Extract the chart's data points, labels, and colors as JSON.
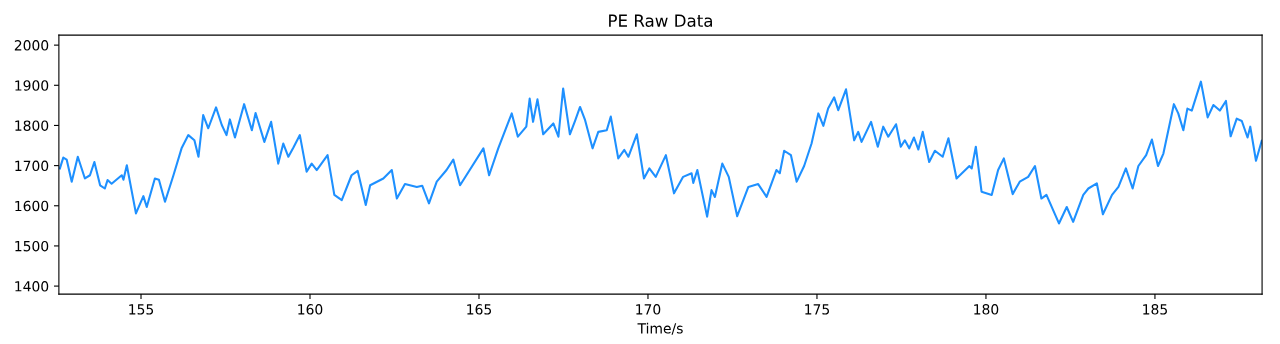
{
  "chart_data": {
    "type": "line",
    "title": "PE Raw Data",
    "xlabel": "Time/s",
    "xlim": [
      152.57,
      188.17
    ],
    "ylim": [
      1380,
      2025
    ],
    "xticks": [
      155,
      160,
      165,
      170,
      175,
      180,
      185
    ],
    "yticks": [
      1400,
      1500,
      1600,
      1700,
      1800,
      1900,
      2000
    ],
    "grid": false,
    "legend": false,
    "marker": "none",
    "line_style": "solid",
    "series": [
      {
        "color": "#1e90ff",
        "x": [
          152.6,
          152.7,
          152.8,
          152.95,
          153.13,
          153.34,
          153.49,
          153.62,
          153.79,
          153.93,
          154.01,
          154.13,
          154.43,
          154.48,
          154.58,
          154.85,
          155.07,
          155.17,
          155.41,
          155.53,
          155.71,
          155.96,
          156.2,
          156.4,
          156.58,
          156.7,
          156.84,
          156.99,
          157.22,
          157.39,
          157.53,
          157.63,
          157.78,
          158.05,
          158.28,
          158.39,
          158.65,
          158.85,
          159.06,
          159.21,
          159.36,
          159.51,
          159.7,
          159.9,
          160.05,
          160.2,
          160.52,
          160.72,
          160.94,
          161.23,
          161.41,
          161.65,
          161.78,
          162.17,
          162.42,
          162.57,
          162.81,
          163.16,
          163.32,
          163.52,
          163.75,
          164.04,
          164.24,
          164.44,
          164.59,
          165.13,
          165.3,
          165.57,
          165.97,
          166.15,
          166.4,
          166.5,
          166.6,
          166.73,
          166.9,
          167.2,
          167.35,
          167.49,
          167.69,
          167.84,
          167.99,
          168.14,
          168.36,
          168.53,
          168.78,
          168.9,
          169.12,
          169.3,
          169.42,
          169.67,
          169.88,
          170.04,
          170.23,
          170.53,
          170.77,
          171.04,
          171.29,
          171.34,
          171.46,
          171.75,
          171.88,
          171.98,
          172.2,
          172.39,
          172.64,
          172.97,
          173.26,
          173.51,
          173.8,
          173.9,
          174.03,
          174.23,
          174.4,
          174.62,
          174.84,
          175.04,
          175.19,
          175.33,
          175.51,
          175.63,
          175.86,
          176.1,
          176.22,
          176.32,
          176.6,
          176.8,
          176.96,
          177.11,
          177.34,
          177.48,
          177.6,
          177.73,
          177.87,
          178.0,
          178.13,
          178.32,
          178.49,
          178.72,
          178.89,
          179.13,
          179.51,
          179.58,
          179.7,
          179.87,
          180.17,
          180.36,
          180.53,
          180.79,
          181.0,
          181.25,
          181.45,
          181.64,
          181.79,
          182.16,
          182.39,
          182.58,
          182.88,
          183.03,
          183.28,
          183.46,
          183.73,
          183.92,
          184.14,
          184.34,
          184.51,
          184.74,
          184.91,
          185.09,
          185.25,
          185.56,
          185.69,
          185.84,
          185.96,
          186.09,
          186.36,
          186.56,
          186.73,
          186.92,
          187.1,
          187.24,
          187.42,
          187.57,
          187.74,
          187.82,
          187.99,
          188.16
        ],
        "values": [
          1693,
          1720,
          1715,
          1660,
          1722,
          1668,
          1676,
          1709,
          1651,
          1643,
          1664,
          1655,
          1676,
          1665,
          1701,
          1581,
          1624,
          1597,
          1668,
          1665,
          1610,
          1676,
          1743,
          1776,
          1763,
          1722,
          1826,
          1793,
          1845,
          1801,
          1776,
          1815,
          1770,
          1853,
          1788,
          1831,
          1759,
          1809,
          1705,
          1755,
          1722,
          1745,
          1776,
          1685,
          1705,
          1689,
          1726,
          1627,
          1614,
          1676,
          1687,
          1602,
          1651,
          1668,
          1689,
          1618,
          1654,
          1647,
          1650,
          1606,
          1660,
          1689,
          1715,
          1651,
          1671,
          1743,
          1676,
          1743,
          1830,
          1772,
          1797,
          1867,
          1809,
          1865,
          1778,
          1805,
          1772,
          1892,
          1778,
          1811,
          1846,
          1813,
          1743,
          1784,
          1788,
          1822,
          1718,
          1739,
          1722,
          1778,
          1668,
          1693,
          1672,
          1726,
          1631,
          1672,
          1681,
          1657,
          1689,
          1573,
          1639,
          1622,
          1705,
          1672,
          1574,
          1647,
          1654,
          1622,
          1689,
          1681,
          1737,
          1726,
          1660,
          1699,
          1755,
          1830,
          1799,
          1842,
          1870,
          1838,
          1890,
          1763,
          1784,
          1759,
          1809,
          1747,
          1797,
          1772,
          1803,
          1747,
          1763,
          1743,
          1770,
          1740,
          1784,
          1709,
          1737,
          1722,
          1768,
          1668,
          1699,
          1693,
          1747,
          1635,
          1627,
          1689,
          1718,
          1629,
          1660,
          1672,
          1699,
          1618,
          1627,
          1556,
          1597,
          1560,
          1627,
          1643,
          1656,
          1579,
          1627,
          1647,
          1693,
          1643,
          1699,
          1726,
          1765,
          1699,
          1730,
          1853,
          1830,
          1788,
          1842,
          1837,
          1909,
          1820,
          1851,
          1837,
          1861,
          1773,
          1817,
          1811,
          1770,
          1797,
          1712,
          1762
        ]
      }
    ]
  }
}
